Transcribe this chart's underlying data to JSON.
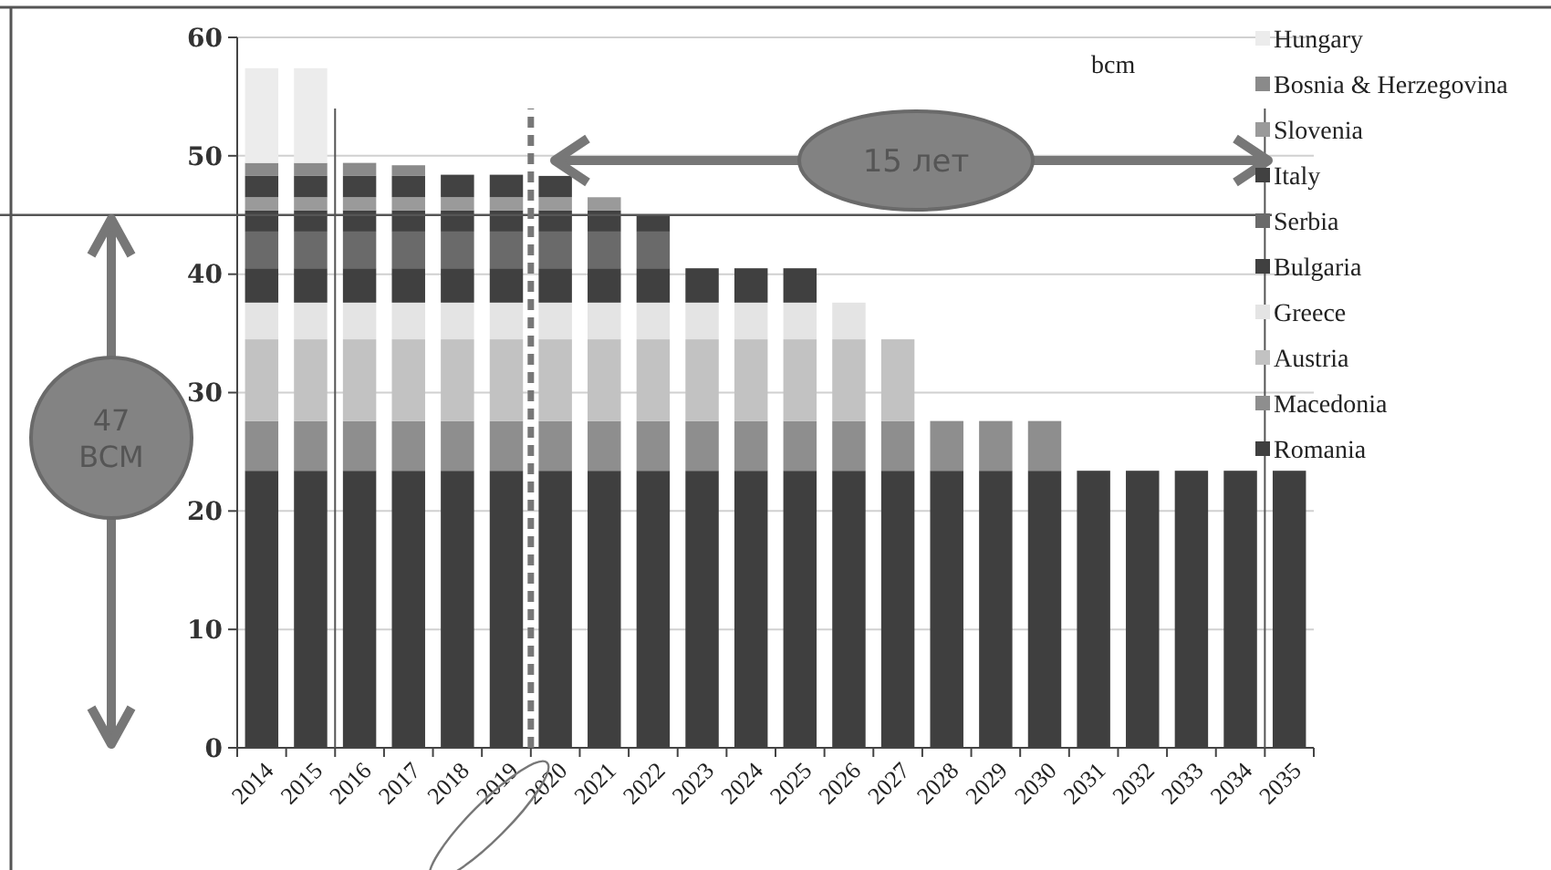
{
  "chart_data": {
    "type": "bar",
    "stacked": true,
    "categories": [
      "2014",
      "2015",
      "2016",
      "2017",
      "2018",
      "2019",
      "2020",
      "2021",
      "2022",
      "2023",
      "2024",
      "2025",
      "2026",
      "2027",
      "2028",
      "2029",
      "2030",
      "2031",
      "2032",
      "2033",
      "2034",
      "2035"
    ],
    "series": [
      {
        "name": "Romania",
        "color": "#3f3f3f",
        "values": [
          23.4,
          23.4,
          23.4,
          23.4,
          23.4,
          23.4,
          23.4,
          23.4,
          23.4,
          23.4,
          23.4,
          23.4,
          23.4,
          23.4,
          23.4,
          23.4,
          23.4,
          23.4,
          23.4,
          23.4,
          23.4,
          23.4
        ]
      },
      {
        "name": "Macedonia",
        "color": "#8e8e8e",
        "values": [
          4.2,
          4.2,
          4.2,
          4.2,
          4.2,
          4.2,
          4.2,
          4.2,
          4.2,
          4.2,
          4.2,
          4.2,
          4.2,
          4.2,
          4.2,
          4.2,
          4.2,
          0,
          0,
          0,
          0,
          0
        ]
      },
      {
        "name": "Austria",
        "color": "#c2c2c2",
        "values": [
          6.9,
          6.9,
          6.9,
          6.9,
          6.9,
          6.9,
          6.9,
          6.9,
          6.9,
          6.9,
          6.9,
          6.9,
          6.9,
          6.9,
          0,
          0,
          0,
          0,
          0,
          0,
          0,
          0
        ]
      },
      {
        "name": "Greece",
        "color": "#e4e4e4",
        "values": [
          3.1,
          3.1,
          3.1,
          3.1,
          3.1,
          3.1,
          3.1,
          3.1,
          3.1,
          3.1,
          3.1,
          3.1,
          3.1,
          0,
          0,
          0,
          0,
          0,
          0,
          0,
          0,
          0
        ]
      },
      {
        "name": "Bulgaria",
        "color": "#404040",
        "values": [
          2.9,
          2.9,
          2.9,
          2.9,
          2.9,
          2.9,
          2.9,
          2.9,
          2.9,
          2.9,
          2.9,
          2.9,
          0,
          0,
          0,
          0,
          0,
          0,
          0,
          0,
          0,
          0
        ]
      },
      {
        "name": "Serbia",
        "color": "#6a6a6a",
        "values": [
          3.1,
          3.1,
          3.1,
          3.1,
          3.1,
          3.1,
          3.1,
          3.1,
          3.1,
          0,
          0,
          0,
          0,
          0,
          0,
          0,
          0,
          0,
          0,
          0,
          0,
          0
        ]
      },
      {
        "name": "Italy",
        "color": "#414141",
        "values": [
          1.8,
          1.8,
          1.8,
          1.8,
          1.8,
          1.8,
          1.8,
          1.8,
          1.4,
          0,
          0,
          0,
          0,
          0,
          0,
          0,
          0,
          0,
          0,
          0,
          0,
          0
        ]
      },
      {
        "name": "Slovenia",
        "color": "#9a9a9a",
        "values": [
          1.1,
          1.1,
          1.1,
          1.1,
          1.1,
          1.1,
          1.1,
          1.1,
          0,
          0,
          0,
          0,
          0,
          0,
          0,
          0,
          0,
          0,
          0,
          0,
          0,
          0
        ]
      },
      {
        "color": "#424242",
        "values": [
          1.8,
          1.8,
          1.8,
          1.8,
          1.9,
          1.9,
          1.8,
          0,
          0,
          0,
          0,
          0,
          0,
          0,
          0,
          0,
          0,
          0,
          0,
          0,
          0,
          0
        ]
      },
      {
        "name": "Bosnia & Herzegovina",
        "color": "#8a8a8a",
        "values": [
          1.1,
          1.1,
          1.1,
          0.9,
          0,
          0,
          0,
          0,
          0,
          0,
          0,
          0,
          0,
          0,
          0,
          0,
          0,
          0,
          0,
          0,
          0,
          0
        ]
      },
      {
        "name": "Hungary",
        "color": "#ececec",
        "values": [
          8.0,
          8.0,
          0,
          0,
          0,
          0,
          0,
          0,
          0,
          0,
          0,
          0,
          0,
          0,
          0,
          0,
          0,
          0,
          0,
          0,
          0,
          0
        ]
      }
    ],
    "ylim": [
      0,
      60
    ],
    "yticks": [
      0,
      10,
      20,
      30,
      40,
      50,
      60
    ],
    "grid": "y",
    "legend": "right",
    "ref_lines": [
      {
        "axis": "y",
        "value": 45,
        "color": "#555555",
        "line_style": "solid"
      },
      {
        "axis": "x",
        "value": "2020",
        "color": "#777777",
        "line_style": "dashed"
      },
      {
        "axis": "x",
        "value": "2016",
        "color": "#555555",
        "line_style": "solid"
      },
      {
        "axis": "x",
        "value": "2035",
        "color": "#555555",
        "line_style": "solid"
      }
    ],
    "annotations": [
      "bcm",
      "15 лет",
      "47 BCM"
    ]
  }
}
